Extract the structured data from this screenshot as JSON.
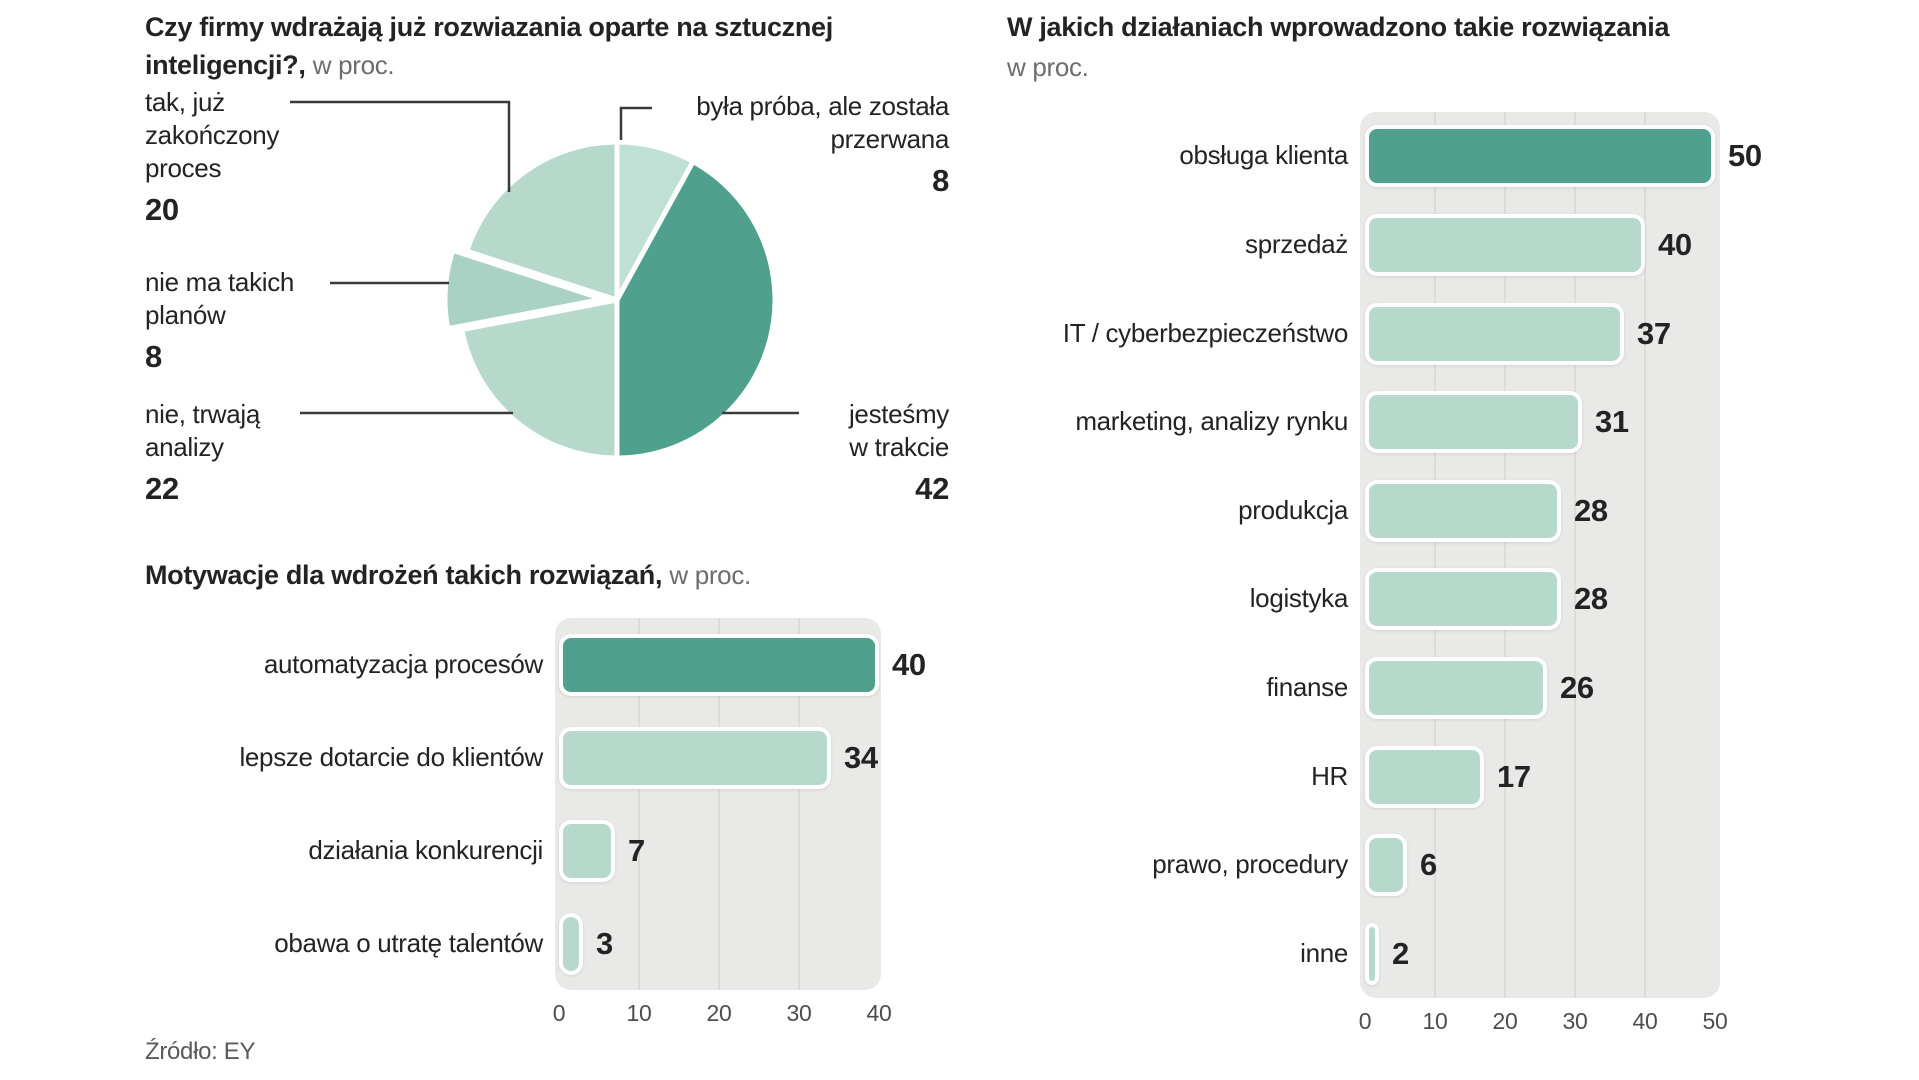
{
  "page": {
    "source": "Źródło: EY"
  },
  "colors": {
    "dark_green": "#4fa08d",
    "light_green": "#b6d9cc",
    "light_green_pale": "#c0e0d6",
    "light_green_deep": "#a9d1c4",
    "plot_bg": "#e9eae7",
    "grid_line": "#dcddd9",
    "text_dark": "#232323",
    "text_muted": "#6d6d6d",
    "axis_text": "#4d4d4d",
    "leader_line": "#3a3a3a"
  },
  "sections": {
    "pie": {
      "title_line1": "Czy firmy wdrażają już rozwiazania oparte na sztucznej",
      "title_line2_bold": "inteligencji?,",
      "title_muted": "w proc."
    },
    "motivations": {
      "title_bold": "Motywacje dla wdrożeń takich rozwiązań,",
      "title_muted": "w proc."
    },
    "areas": {
      "title_bold": "W jakich działaniach wprowadzono takie rozwiązania",
      "title_muted": "w proc."
    }
  },
  "chart_data": [
    {
      "type": "pie",
      "title": "Czy firmy wdrażają już rozwiazania oparte na sztucznej inteligencji?",
      "subtitle": "w proc.",
      "start_at_top": true,
      "clockwise": true,
      "slices": [
        {
          "label": "była próba, ale została przerwana",
          "label_lines": [
            "była próba, ale została",
            "przerwana"
          ],
          "value": 8,
          "color": "light_green_pale",
          "exploded": false
        },
        {
          "label": "jesteśmy w trakcie",
          "label_lines": [
            "jesteśmy",
            "w trakcie"
          ],
          "value": 42,
          "color": "dark_green",
          "exploded": false
        },
        {
          "label": "nie, trwają analizy",
          "label_lines": [
            "nie, trwają",
            "analizy"
          ],
          "value": 22,
          "color": "light_green",
          "exploded": false
        },
        {
          "label": "nie ma takich planów",
          "label_lines": [
            "nie ma takich",
            "planów"
          ],
          "value": 8,
          "color": "light_green_deep",
          "exploded": true
        },
        {
          "label": "tak, już zakończony proces",
          "label_lines": [
            "tak, już",
            "zakończony",
            "proces"
          ],
          "value": 20,
          "color": "light_green",
          "exploded": false
        }
      ]
    },
    {
      "type": "bar",
      "orientation": "horizontal",
      "title": "Motywacje dla wdrożeń takich rozwiązań",
      "subtitle": "w proc.",
      "categories": [
        "automatyzacja procesów",
        "lepsze dotarcie do klientów",
        "działania konkurencji",
        "obawa o utratę talentów"
      ],
      "values": [
        40,
        34,
        7,
        3
      ],
      "highlight_index": 0,
      "xlim": [
        0,
        40
      ],
      "x_ticks": [
        0,
        10,
        20,
        30,
        40
      ],
      "grid": true,
      "legend": false
    },
    {
      "type": "bar",
      "orientation": "horizontal",
      "title": "W jakich działaniach wprowadzono takie rozwiązania",
      "subtitle": "w proc.",
      "categories": [
        "obsługa klienta",
        "sprzedaż",
        "IT / cyberbezpieczeństwo",
        "marketing, analizy rynku",
        "produkcja",
        "logistyka",
        "finanse",
        "HR",
        "prawo, procedury",
        "inne"
      ],
      "values": [
        50,
        40,
        37,
        31,
        28,
        28,
        26,
        17,
        6,
        2
      ],
      "highlight_index": 0,
      "xlim": [
        0,
        50
      ],
      "x_ticks": [
        0,
        10,
        20,
        30,
        40,
        50
      ],
      "grid": true,
      "legend": false
    }
  ]
}
